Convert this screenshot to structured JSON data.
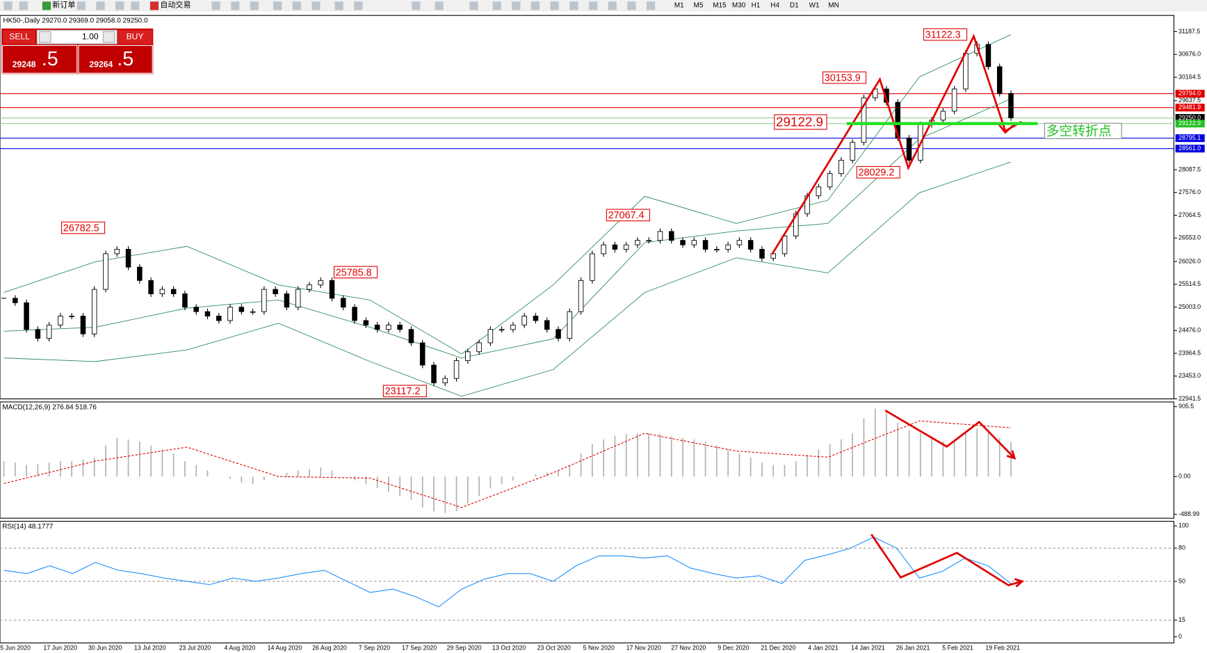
{
  "toolbar": {
    "new_order": "新订单",
    "auto_trading": "自动交易",
    "periods": [
      "M1",
      "M5",
      "M15",
      "M30",
      "H1",
      "H4",
      "D1",
      "W1",
      "MN"
    ]
  },
  "trade_panel": {
    "sell": "SELL",
    "volume": "1.00",
    "buy": "BUY",
    "bid": "29248",
    "bid_frac": ".5",
    "ask": "29264",
    "ask_frac": ".5"
  },
  "main": {
    "header": "HK50-,Daily 29270.0 29369.0 29058.0 29250.0",
    "ylim": [
      22941.5,
      31187.5
    ],
    "yticks": [
      {
        "value": 31187.5,
        "label": "31187.5"
      },
      {
        "value": 30676,
        "label": "30676.0"
      },
      {
        "value": 30164.5,
        "label": "30164.5"
      },
      {
        "value": 29637.5,
        "label": "29637.5"
      },
      {
        "value": 28087.5,
        "label": "28087.5"
      },
      {
        "value": 27576,
        "label": "27576.0"
      },
      {
        "value": 27064.5,
        "label": "27064.5"
      },
      {
        "value": 26553,
        "label": "26553.0"
      },
      {
        "value": 26026,
        "label": "26026.0"
      },
      {
        "value": 25514.5,
        "label": "25514.5"
      },
      {
        "value": 25003,
        "label": "25003.0"
      },
      {
        "value": 24476,
        "label": "24476.0"
      },
      {
        "value": 23964.5,
        "label": "23964.5"
      },
      {
        "value": 23453,
        "label": "23453.0"
      },
      {
        "value": 22941.5,
        "label": "22941.5"
      }
    ],
    "levels": [
      {
        "value": 29794,
        "label": "29794.0",
        "color": "#e00000"
      },
      {
        "value": 29481.9,
        "label": "29481.9",
        "color": "#e00000"
      },
      {
        "value": 29250,
        "label": "29250.0",
        "color": "#000000"
      },
      {
        "value": 29122.9,
        "label": "29122.9",
        "color": "#22c022"
      },
      {
        "value": 28795.1,
        "label": "28795.1",
        "color": "#0000e0"
      },
      {
        "value": 28561,
        "label": "28561.0",
        "color": "#0000e0"
      }
    ],
    "closes": [
      25200,
      25100,
      24500,
      24300,
      24600,
      24800,
      24800,
      24400,
      25400,
      26200,
      26300,
      25900,
      25600,
      25300,
      25400,
      25300,
      25000,
      24900,
      24800,
      24700,
      25000,
      24900,
      24900,
      25400,
      25300,
      25000,
      25400,
      25500,
      25600,
      25200,
      25000,
      24700,
      24600,
      24500,
      24600,
      24500,
      24200,
      23700,
      23300,
      23400,
      23800,
      24000,
      24200,
      24500,
      24500,
      24600,
      24800,
      24700,
      24500,
      24300,
      24900,
      25600,
      26200,
      26400,
      26300,
      26400,
      26500,
      26500,
      26700,
      26500,
      26400,
      26500,
      26300,
      26300,
      26400,
      26500,
      26300,
      26100,
      26200,
      26600,
      27100,
      27500,
      27700,
      28000,
      28300,
      28700,
      29700,
      29900,
      29600,
      28800,
      28300,
      29100,
      29200,
      29400,
      29900,
      30700,
      30900,
      30400,
      29800,
      29250
    ],
    "bands": {
      "upper": [
        25330,
        26020,
        26366,
        25500,
        25160,
        23950,
        25500,
        27490,
        26880,
        27400,
        30170,
        31120
      ],
      "middle": [
        24460,
        24550,
        24980,
        25160,
        24550,
        23860,
        24290,
        26450,
        26710,
        26880,
        28780,
        29680
      ],
      "lower": [
        23860,
        23780,
        24040,
        24640,
        23780,
        23000,
        23600,
        25330,
        26110,
        25770,
        27570,
        28260
      ]
    },
    "annotations": [
      26782.5,
      25785.8,
      23117.2,
      27067.4,
      30153.9,
      31122.3,
      28029.2,
      29122.9
    ],
    "turning_point": "多空转折点"
  },
  "x_axis": {
    "labels": [
      "5 Jun 2020",
      "17 Jun 2020",
      "30 Jun 2020",
      "13 Jul 2020",
      "23 Jul 2020",
      "4 Aug 2020",
      "14 Aug 2020",
      "26 Aug 2020",
      "7 Sep 2020",
      "17 Sep 2020",
      "29 Sep 2020",
      "13 Oct 2020",
      "23 Oct 2020",
      "5 Nov 2020",
      "17 Nov 2020",
      "27 Nov 2020",
      "9 Dec 2020",
      "21 Dec 2020",
      "4 Jan 2021",
      "14 Jan 2021",
      "26 Jan 2021",
      "5 Feb 2021",
      "19 Feb 2021"
    ]
  },
  "macd": {
    "header": "MACD(12,26,9) 276.84 518.76",
    "ylim": [
      -488.99,
      905.5
    ],
    "yticks": [
      905.5,
      {
        "value": 0,
        "label": "0.00"
      },
      -488.99
    ],
    "histogram": [
      200,
      180,
      150,
      160,
      180,
      200,
      200,
      220,
      250,
      400,
      500,
      480,
      450,
      400,
      350,
      300,
      200,
      150,
      80,
      0,
      -30,
      -80,
      -100,
      -50,
      0,
      50,
      80,
      100,
      120,
      80,
      0,
      -50,
      -100,
      -150,
      -200,
      -250,
      -300,
      -400,
      -450,
      -470,
      -450,
      -350,
      -250,
      -150,
      -100,
      -50,
      0,
      30,
      50,
      80,
      150,
      300,
      420,
      480,
      530,
      550,
      560,
      560,
      550,
      520,
      500,
      480,
      450,
      400,
      350,
      300,
      250,
      180,
      150,
      150,
      200,
      280,
      350,
      420,
      480,
      560,
      750,
      880,
      850,
      700,
      600,
      560,
      500,
      460,
      480,
      560,
      620,
      580,
      500,
      450
    ],
    "signal": [
      -90,
      200,
      380,
      0,
      -20,
      -400,
      50,
      560,
      330,
      250,
      720,
      630
    ]
  },
  "rsi": {
    "header": "RSI(14) 48.1777",
    "ylim": [
      0,
      100
    ],
    "yticks": [
      100,
      80,
      50,
      15,
      0
    ],
    "levels": [
      80,
      50,
      15
    ],
    "values": [
      60,
      57,
      64,
      57,
      67,
      60,
      57,
      53,
      50,
      47,
      53,
      50,
      53,
      57,
      60,
      50,
      40,
      43,
      36,
      27,
      43,
      52,
      57,
      57,
      50,
      64,
      73,
      73,
      71,
      73,
      62,
      57,
      53,
      55,
      48,
      69,
      74,
      80,
      90,
      80,
      53,
      59,
      71,
      64,
      48
    ]
  }
}
